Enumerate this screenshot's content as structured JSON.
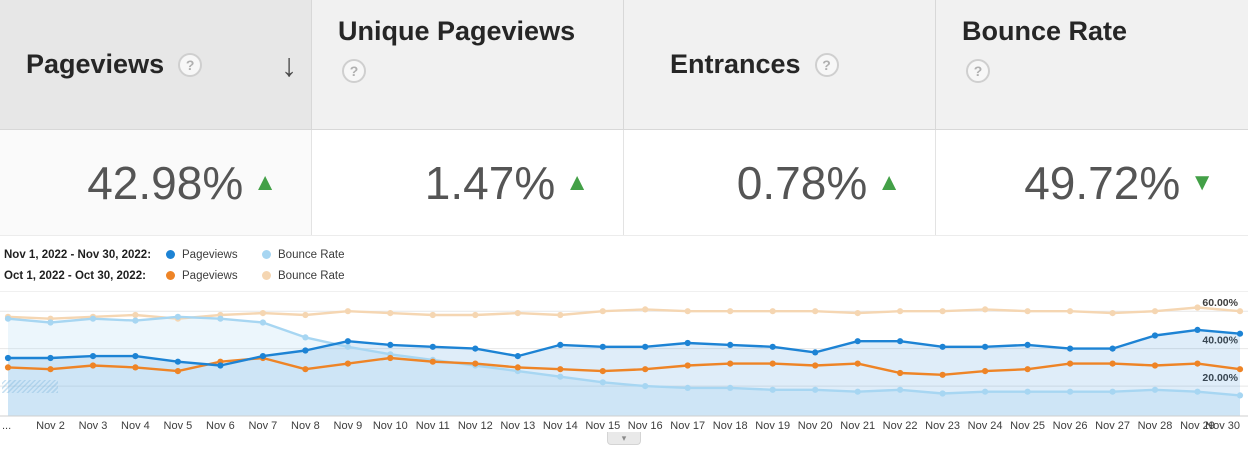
{
  "metrics": {
    "help_icon": "?",
    "sort_icon": "↓",
    "columns": [
      {
        "label": "Pageviews",
        "value": "42.98%",
        "arrow": "▲",
        "arrow_color": "#43a047"
      },
      {
        "label": "Unique Pageviews",
        "value": "1.47%",
        "arrow": "▲",
        "arrow_color": "#43a047"
      },
      {
        "label": "Entrances",
        "value": "0.78%",
        "arrow": "▲",
        "arrow_color": "#43a047"
      },
      {
        "label": "Bounce Rate",
        "value": "49.72%",
        "arrow": "▼",
        "arrow_color": "#43a047"
      }
    ]
  },
  "legend": {
    "rows": [
      {
        "label": "Nov 1, 2022 - Nov 30, 2022:",
        "series": [
          {
            "name": "Pageviews",
            "color": "#1d83d4"
          },
          {
            "name": "Bounce Rate",
            "color": "#a7d6f2"
          }
        ]
      },
      {
        "label": "Oct 1, 2022 - Oct 30, 2022:",
        "series": [
          {
            "name": "Pageviews",
            "color": "#ee8426"
          },
          {
            "name": "Bounce Rate",
            "color": "#f5d6b2"
          }
        ]
      }
    ]
  },
  "chart": {
    "toggle_icon": "▾"
  },
  "chart_data": {
    "type": "line",
    "title": "",
    "xlabel": "",
    "ylabel": "",
    "grid": true,
    "legend_position": "top-left",
    "ylim": [
      4,
      66
    ],
    "yticks": [
      20,
      40,
      60
    ],
    "ytick_labels": [
      "20.00%",
      "40.00%",
      "60.00%"
    ],
    "x": [
      "Nov 1",
      "Nov 2",
      "Nov 3",
      "Nov 4",
      "Nov 5",
      "Nov 6",
      "Nov 7",
      "Nov 8",
      "Nov 9",
      "Nov 10",
      "Nov 11",
      "Nov 12",
      "Nov 13",
      "Nov 14",
      "Nov 15",
      "Nov 16",
      "Nov 17",
      "Nov 18",
      "Nov 19",
      "Nov 20",
      "Nov 21",
      "Nov 22",
      "Nov 23",
      "Nov 24",
      "Nov 25",
      "Nov 26",
      "Nov 27",
      "Nov 28",
      "Nov 29",
      "Nov 30"
    ],
    "x_tick_labels": [
      "...",
      "Nov 2",
      "Nov 3",
      "Nov 4",
      "Nov 5",
      "Nov 6",
      "Nov 7",
      "Nov 8",
      "Nov 9",
      "Nov 10",
      "Nov 11",
      "Nov 12",
      "Nov 13",
      "Nov 14",
      "Nov 15",
      "Nov 16",
      "Nov 17",
      "Nov 18",
      "Nov 19",
      "Nov 20",
      "Nov 21",
      "Nov 22",
      "Nov 23",
      "Nov 24",
      "Nov 25",
      "Nov 26",
      "Nov 27",
      "Nov 28",
      "Nov 29",
      "Nov 30"
    ],
    "series": [
      {
        "name": "Bounce Rate (Oct 1, 2022 - Oct 30, 2022)",
        "color": "#f5d6b2",
        "values": [
          57,
          56,
          57,
          58,
          56,
          58,
          59,
          58,
          60,
          59,
          58,
          58,
          59,
          58,
          60,
          61,
          60,
          60,
          60,
          60,
          59,
          60,
          60,
          61,
          60,
          60,
          59,
          60,
          62,
          60
        ]
      },
      {
        "name": "Bounce Rate (Nov 1, 2022 - Nov 30, 2022)",
        "color": "#a7d6f2",
        "area_opacity": 0.22,
        "values": [
          56,
          54,
          56,
          55,
          57,
          56,
          54,
          46,
          41,
          37,
          34,
          31,
          28,
          25,
          22,
          20,
          19,
          19,
          18,
          18,
          17,
          18,
          16,
          17,
          17,
          17,
          17,
          18,
          17,
          15
        ]
      },
      {
        "name": "Pageviews (Oct 1, 2022 - Oct 30, 2022)",
        "color": "#ee8426",
        "values": [
          30,
          29,
          31,
          30,
          28,
          33,
          35,
          29,
          32,
          35,
          33,
          32,
          30,
          29,
          28,
          29,
          31,
          32,
          32,
          31,
          32,
          27,
          26,
          28,
          29,
          32,
          32,
          31,
          32,
          29
        ]
      },
      {
        "name": "Pageviews (Nov 1, 2022 - Nov 30, 2022)",
        "color": "#1d83d4",
        "area_opacity": 0.14,
        "values": [
          35,
          35,
          36,
          36,
          33,
          31,
          36,
          39,
          44,
          42,
          41,
          40,
          36,
          42,
          41,
          41,
          43,
          42,
          41,
          38,
          44,
          44,
          41,
          41,
          42,
          40,
          40,
          47,
          50,
          48
        ]
      }
    ]
  }
}
